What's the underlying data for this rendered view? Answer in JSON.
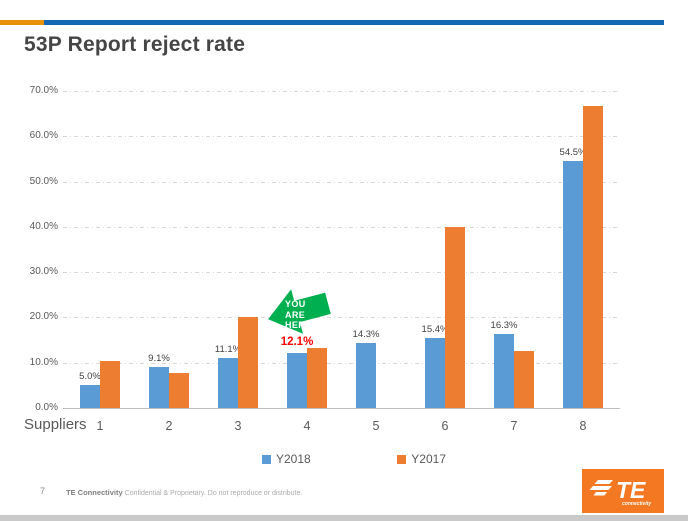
{
  "header_bar": {
    "orange": "#E8900A",
    "blue": "#1268B3"
  },
  "chart_data": {
    "type": "bar",
    "title": "53P Report reject rate",
    "xlabel": "Suppliers",
    "ylabel": "",
    "categories": [
      "1",
      "2",
      "3",
      "4",
      "5",
      "6",
      "7",
      "8"
    ],
    "series": [
      {
        "name": "Y2018",
        "color": "#5B9BD5",
        "values": [
          5.0,
          9.1,
          11.1,
          12.1,
          14.3,
          15.4,
          16.3,
          54.5
        ],
        "labels": [
          "5.0%",
          "9.1%",
          "11.1%",
          "12.1%",
          "14.3%",
          "15.4%",
          "16.3%",
          "54.5%"
        ]
      },
      {
        "name": "Y2017",
        "color": "#ED7D31",
        "values": [
          10.4,
          7.7,
          20.0,
          13.3,
          0.0,
          40.0,
          12.5,
          66.7
        ]
      }
    ],
    "ylim": [
      0,
      70
    ],
    "yticks": [
      0,
      10,
      20,
      30,
      40,
      50,
      60,
      70
    ],
    "ytick_labels": [
      "0.0%",
      "10.0%",
      "20.0%",
      "30.0%",
      "40.0%",
      "50.0%",
      "60.0%",
      "70.0%"
    ],
    "grid": "horizontal-dash-dot",
    "legend_position": "bottom",
    "highlight": {
      "series": 0,
      "index": 3,
      "label_color": "#FF0000"
    }
  },
  "annotation": {
    "lines": [
      "YOU",
      "ARE",
      "HERE."
    ],
    "fill": "#00B050",
    "text_color": "#FFFFFF"
  },
  "footer": {
    "page_number": "7",
    "brand": "TE Connectivity",
    "disclaimer": "Confidential & Proprietary. Do not reproduce or distribute."
  },
  "logo": {
    "name": "TE",
    "subtext": "connectivity",
    "bg": "#F47721"
  }
}
